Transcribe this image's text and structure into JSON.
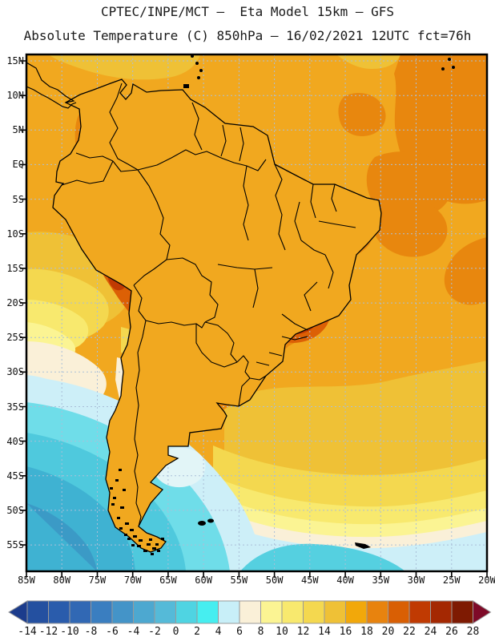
{
  "title": {
    "line1": "CPTEC/INPE/MCT –  Eta Model 15km – GFS",
    "line2": "Absolute Temperature (C) 850hPa – 16/02/2021 12UTC fct=76h"
  },
  "axes": {
    "lat_labels": [
      "15N",
      "10N",
      "5N",
      "EQ",
      "5S",
      "10S",
      "15S",
      "20S",
      "25S",
      "30S",
      "35S",
      "40S",
      "45S",
      "50S",
      "55S"
    ],
    "lon_labels": [
      "85W",
      "80W",
      "75W",
      "70W",
      "65W",
      "60W",
      "55W",
      "50W",
      "45W",
      "40W",
      "35W",
      "30W",
      "25W",
      "20W"
    ]
  },
  "colorbar": {
    "tick_labels": [
      "-14",
      "-12",
      "-10",
      "-8",
      "-6",
      "-4",
      "-2",
      "0",
      "2",
      "4",
      "6",
      "8",
      "10",
      "12",
      "14",
      "16",
      "18",
      "20",
      "22",
      "24",
      "26",
      "28"
    ],
    "cell_colors": [
      "#2450A0",
      "#2A5CAC",
      "#3168B4",
      "#3A7EC0",
      "#4494C8",
      "#4DA8D0",
      "#55BAD8",
      "#4FD4E2",
      "#46EEF0",
      "#C8EFF8",
      "#FAF0D8",
      "#FBF493",
      "#F8E96E",
      "#F4D84F",
      "#EFC136",
      "#F2A80A",
      "#E8830E",
      "#D95F04",
      "#C03A02",
      "#A42802",
      "#7E1A02"
    ],
    "left_arrow_color": "#1C3C8C",
    "right_arrow_color": "#7E0A28"
  }
}
